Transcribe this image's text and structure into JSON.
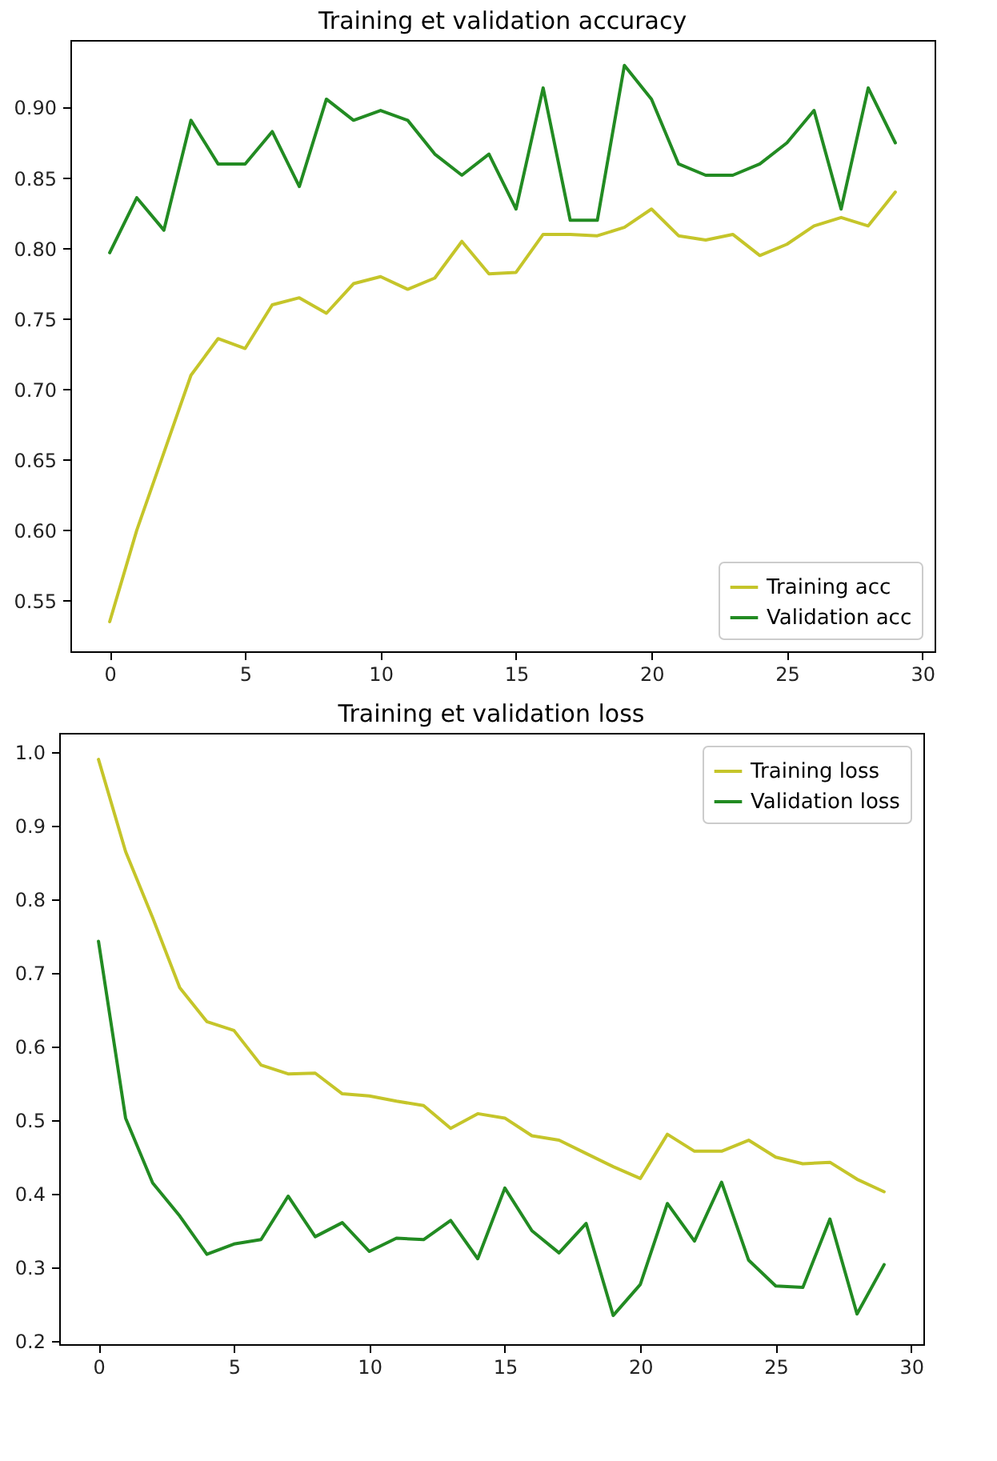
{
  "chart_data": [
    {
      "type": "line",
      "title": "Training et validation accuracy",
      "x": [
        0,
        1,
        2,
        3,
        4,
        5,
        6,
        7,
        8,
        9,
        10,
        11,
        12,
        13,
        14,
        15,
        16,
        17,
        18,
        19,
        20,
        21,
        22,
        23,
        24,
        25,
        26,
        27,
        28,
        29
      ],
      "series": [
        {
          "name": "Training acc",
          "color": "#c5c52a",
          "values": [
            0.535,
            0.6,
            0.655,
            0.71,
            0.736,
            0.729,
            0.76,
            0.765,
            0.754,
            0.775,
            0.78,
            0.771,
            0.779,
            0.805,
            0.782,
            0.783,
            0.81,
            0.81,
            0.809,
            0.815,
            0.828,
            0.809,
            0.806,
            0.81,
            0.795,
            0.803,
            0.816,
            0.822,
            0.816,
            0.84
          ]
        },
        {
          "name": "Validation acc",
          "color": "#228b22",
          "values": [
            0.797,
            0.836,
            0.813,
            0.891,
            0.86,
            0.86,
            0.883,
            0.844,
            0.906,
            0.891,
            0.898,
            0.891,
            0.867,
            0.852,
            0.867,
            0.828,
            0.914,
            0.82,
            0.82,
            0.93,
            0.906,
            0.86,
            0.852,
            0.852,
            0.86,
            0.875,
            0.898,
            0.828,
            0.914,
            0.875
          ]
        }
      ],
      "xlim": [
        -1.45,
        30.45
      ],
      "xticks": [
        0,
        5,
        10,
        15,
        20,
        25,
        30
      ],
      "ylim": [
        0.514,
        0.948
      ],
      "yticks": [
        {
          "value": 0.55,
          "label": "0.55"
        },
        {
          "value": 0.6,
          "label": "0.60"
        },
        {
          "value": 0.65,
          "label": "0.65"
        },
        {
          "value": 0.7,
          "label": "0.70"
        },
        {
          "value": 0.75,
          "label": "0.75"
        },
        {
          "value": 0.8,
          "label": "0.80"
        },
        {
          "value": 0.85,
          "label": "0.85"
        },
        {
          "value": 0.9,
          "label": "0.90"
        }
      ],
      "legend": "bottom right",
      "grid": false
    },
    {
      "type": "line",
      "title": "Training et validation loss",
      "x": [
        0,
        1,
        2,
        3,
        4,
        5,
        6,
        7,
        8,
        9,
        10,
        11,
        12,
        13,
        14,
        15,
        16,
        17,
        18,
        19,
        20,
        21,
        22,
        23,
        24,
        25,
        26,
        27,
        28,
        29
      ],
      "series": [
        {
          "name": "Training loss",
          "color": "#c5c52a",
          "values": [
            0.99,
            0.865,
            0.775,
            0.68,
            0.634,
            0.622,
            0.575,
            0.563,
            0.564,
            0.536,
            0.533,
            0.526,
            0.52,
            0.489,
            0.509,
            0.503,
            0.479,
            0.473,
            0.455,
            0.437,
            0.421,
            0.481,
            0.458,
            0.458,
            0.473,
            0.45,
            0.441,
            0.443,
            0.42,
            0.403
          ]
        },
        {
          "name": "Validation loss",
          "color": "#228b22",
          "values": [
            0.743,
            0.503,
            0.415,
            0.37,
            0.318,
            0.332,
            0.338,
            0.397,
            0.342,
            0.361,
            0.322,
            0.34,
            0.338,
            0.364,
            0.312,
            0.408,
            0.35,
            0.32,
            0.36,
            0.235,
            0.277,
            0.387,
            0.336,
            0.416,
            0.31,
            0.275,
            0.273,
            0.366,
            0.237,
            0.304
          ]
        }
      ],
      "xlim": [
        -1.45,
        30.45
      ],
      "xticks": [
        0,
        5,
        10,
        15,
        20,
        25,
        30
      ],
      "ylim": [
        0.196,
        1.026
      ],
      "yticks": [
        0.2,
        0.3,
        0.4,
        0.5,
        0.6,
        0.7,
        0.8,
        0.9,
        {
          "value": 1.0,
          "label": "1.0"
        }
      ],
      "legend": "top right",
      "grid": false
    }
  ]
}
